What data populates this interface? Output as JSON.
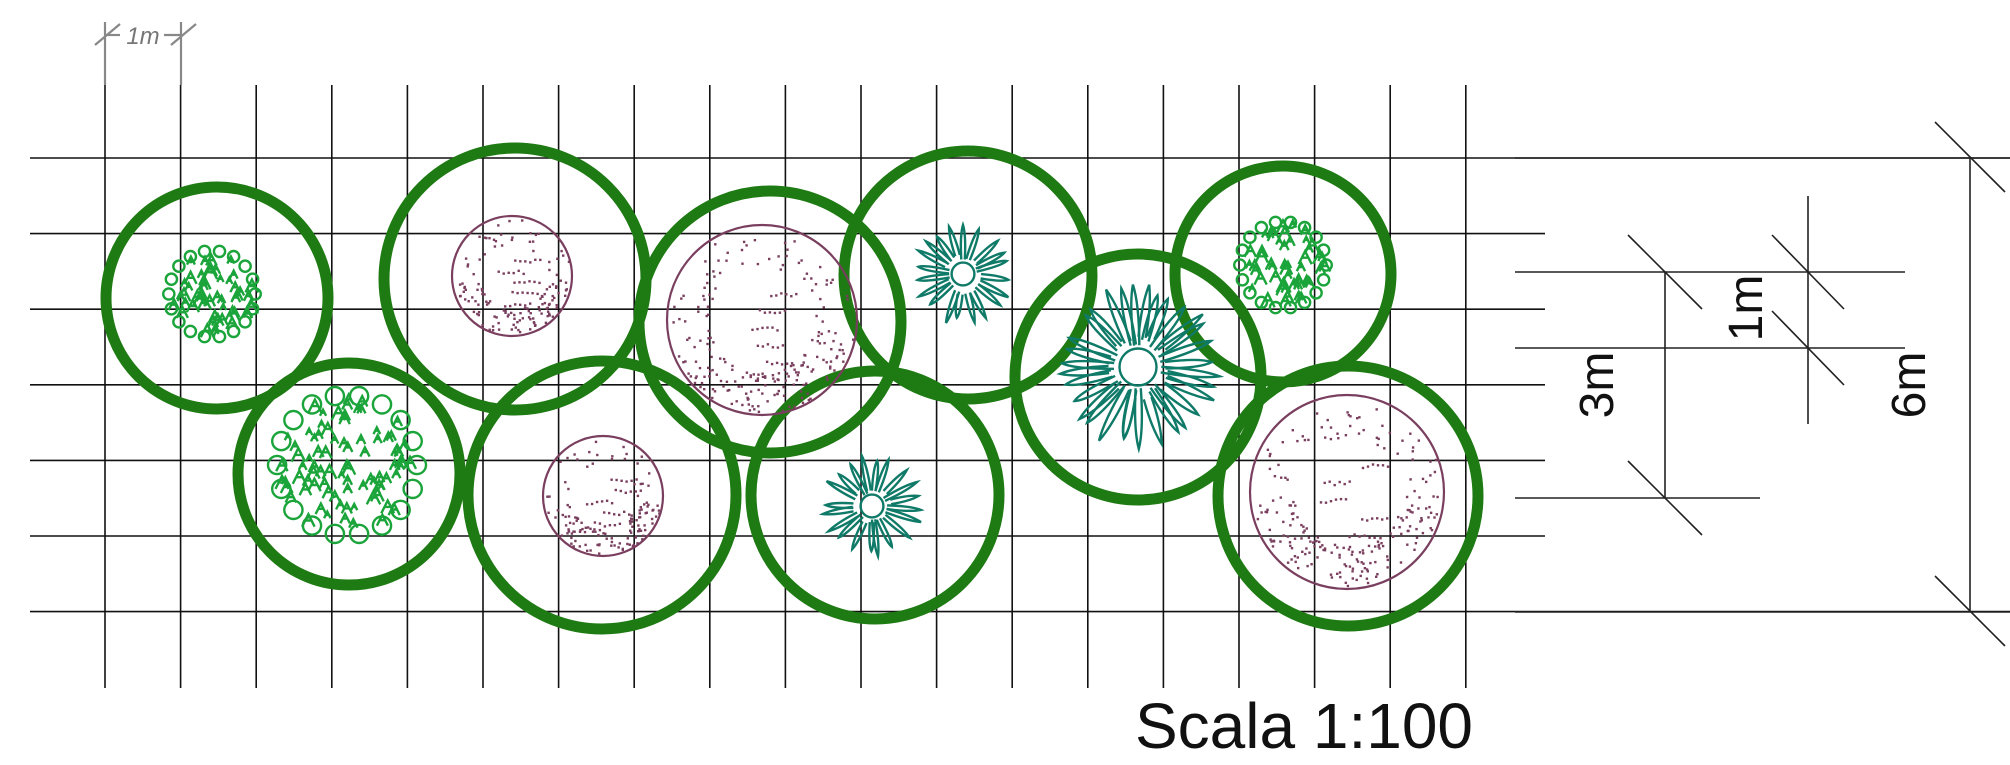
{
  "scale_label": "Scala 1:100",
  "grid_unit_label": "1m",
  "dimensions": {
    "small_spacing": "1m",
    "row_spacing": "3m",
    "total_depth": "6m"
  },
  "colors": {
    "canopy_ring": "#1e7a12",
    "shrub_bright_green": "#1aa43a",
    "shrub_teal": "#0f7a68",
    "shrub_plum": "#7a3f5f",
    "grid": "#111111"
  },
  "plant_types": [
    "bright-green-leafy-shrub",
    "teal-frond-shrub",
    "plum-dotted-shrub"
  ]
}
